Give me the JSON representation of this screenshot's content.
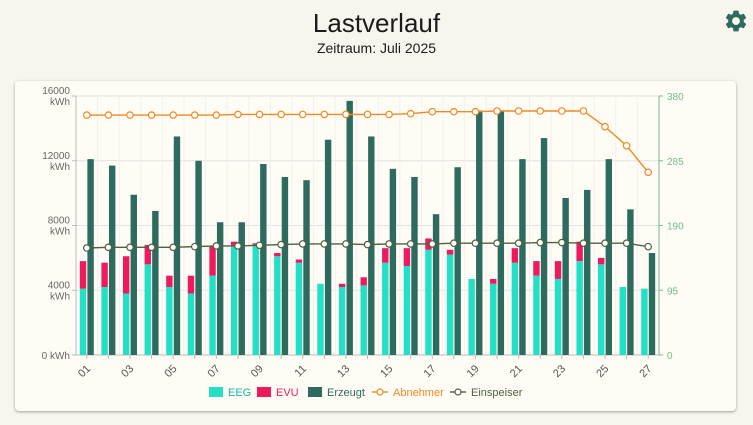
{
  "header": {
    "title": "Lastverlauf",
    "subtitle": "Zeitraum: Juli 2025"
  },
  "icons": {
    "settings": "gear-icon"
  },
  "colors": {
    "eeg": "#22e0c6",
    "evu": "#ee1a5f",
    "erzeugt": "#2d6b5e",
    "abnehmer": "#f08a24",
    "einspeiser": "#4f6043",
    "right_axis": "#6cc08a",
    "left_axis": "#666666",
    "grid": "#e2e2e2"
  },
  "chart_data": {
    "type": "bar",
    "categories": [
      "01",
      "02",
      "03",
      "04",
      "05",
      "06",
      "07",
      "08",
      "09",
      "10",
      "11",
      "12",
      "13",
      "14",
      "15",
      "16",
      "17",
      "18",
      "19",
      "20",
      "21",
      "22",
      "23",
      "24",
      "25",
      "26",
      "27"
    ],
    "x_tick_labels": [
      "01",
      "03",
      "05",
      "07",
      "09",
      "11",
      "13",
      "15",
      "17",
      "19",
      "21",
      "23",
      "25",
      "27"
    ],
    "left_axis": {
      "unit": "kWh",
      "ylim": [
        0,
        16000
      ],
      "ticks": [
        {
          "value": 0,
          "line1": "0 kWh",
          "line2": ""
        },
        {
          "value": 4000,
          "line1": "4000",
          "line2": "kWh"
        },
        {
          "value": 8000,
          "line1": "8000",
          "line2": "kWh"
        },
        {
          "value": 12000,
          "line1": "12000",
          "line2": "kWh"
        },
        {
          "value": 16000,
          "line1": "16000",
          "line2": "kWh"
        }
      ]
    },
    "right_axis": {
      "ylim": [
        0,
        380
      ],
      "ticks": [
        {
          "value": 0,
          "label": "0"
        },
        {
          "value": 95,
          "label": "95"
        },
        {
          "value": 190,
          "label": "190"
        },
        {
          "value": 285,
          "label": "285"
        },
        {
          "value": 380,
          "label": "380"
        }
      ]
    },
    "series": [
      {
        "name": "EEG",
        "kind": "bar",
        "stack": "consumption",
        "axis": "left",
        "values": [
          4100,
          4200,
          3800,
          5600,
          4200,
          3800,
          4900,
          6700,
          6800,
          6100,
          5700,
          4400,
          4200,
          4300,
          5700,
          5500,
          6500,
          6200,
          4700,
          4400,
          5700,
          4900,
          4700,
          5800,
          5600,
          4200,
          4100
        ]
      },
      {
        "name": "EVU",
        "kind": "bar",
        "stack": "consumption",
        "axis": "left",
        "values": [
          1700,
          1500,
          2300,
          1200,
          700,
          1100,
          1800,
          300,
          100,
          200,
          200,
          0,
          200,
          500,
          900,
          1100,
          700,
          300,
          0,
          300,
          900,
          900,
          1100,
          1200,
          400,
          0,
          0
        ]
      },
      {
        "name": "Erzeugt",
        "kind": "bar",
        "axis": "left",
        "values": [
          12100,
          11700,
          9900,
          8900,
          13500,
          12000,
          8200,
          8200,
          11800,
          11000,
          10800,
          13300,
          15700,
          13500,
          11500,
          11000,
          8700,
          11600,
          15100,
          15100,
          12100,
          13400,
          9700,
          10200,
          12100,
          9000,
          6300
        ]
      },
      {
        "name": "Abnehmer",
        "kind": "line",
        "axis": "right",
        "values": [
          352,
          352,
          352,
          352,
          352,
          352,
          352,
          353,
          353,
          353,
          353,
          353,
          353,
          353,
          353,
          354,
          357,
          357,
          357,
          358,
          358,
          358,
          358,
          358,
          335,
          307,
          268
        ]
      },
      {
        "name": "Einspeiser",
        "kind": "line",
        "axis": "right",
        "values": [
          157,
          158,
          158,
          158,
          158,
          159,
          160,
          160,
          161,
          162,
          163,
          163,
          163,
          162,
          163,
          163,
          163,
          164,
          164,
          164,
          164,
          165,
          165,
          164,
          164,
          164,
          159
        ]
      }
    ],
    "legend_position": "bottom",
    "grid": true
  }
}
